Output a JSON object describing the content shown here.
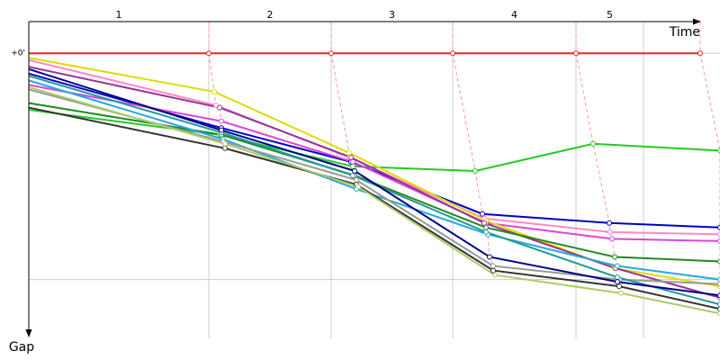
{
  "chart_data": {
    "type": "line",
    "x_label": "Time",
    "y_label": "Gap",
    "xlim": [
      0,
      768
    ],
    "ylim": [
      -0.14,
      1.26
    ],
    "yticks": [
      {
        "value": 0,
        "label": "+0'"
      },
      {
        "value": 1,
        "label": null
      }
    ],
    "laps": {
      "labels": [
        "1",
        "2",
        "3",
        "4",
        "5"
      ],
      "ends": [
        200,
        336,
        471,
        608,
        683
      ]
    },
    "grid": true,
    "series": [
      {
        "color": "#22cc22",
        "x": [
          0,
          212,
          360,
          496,
          627,
          768
        ],
        "y": [
          0.25,
          0.36,
          0.5,
          0.52,
          0.4,
          0.43
        ]
      },
      {
        "color": "#0000cc",
        "x": [
          0,
          214,
          358,
          504,
          645,
          768
        ],
        "y": [
          0.09,
          0.33,
          0.48,
          0.71,
          0.75,
          0.77
        ]
      },
      {
        "color": "#dd44dd",
        "x": [
          0,
          214,
          360,
          508,
          648,
          768
        ],
        "y": [
          0.14,
          0.3,
          0.48,
          0.75,
          0.82,
          0.83
        ]
      },
      {
        "color": "#ff88cc",
        "x": [
          0,
          208,
          356,
          506,
          646,
          768
        ],
        "y": [
          0.03,
          0.23,
          0.46,
          0.73,
          0.79,
          0.8
        ]
      },
      {
        "color": "#dddd00",
        "x": [
          0,
          206,
          356,
          508,
          651,
          768
        ],
        "y": [
          0.02,
          0.17,
          0.44,
          0.74,
          0.95,
          1.03
        ]
      },
      {
        "color": "#993399",
        "x": [
          0,
          212,
          358,
          506,
          652,
          768
        ],
        "y": [
          0.06,
          0.24,
          0.46,
          0.75,
          0.95,
          1.08
        ]
      },
      {
        "color": "#228822",
        "x": [
          0,
          214,
          362,
          508,
          651,
          768
        ],
        "y": [
          0.22,
          0.36,
          0.54,
          0.77,
          0.9,
          0.92
        ]
      },
      {
        "color": "#22aadd",
        "x": [
          0,
          216,
          364,
          510,
          654,
          768
        ],
        "y": [
          0.12,
          0.38,
          0.6,
          0.8,
          0.94,
          1.0
        ]
      },
      {
        "color": "#999999",
        "x": [
          0,
          216,
          364,
          516,
          656,
          768
        ],
        "y": [
          0.16,
          0.39,
          0.56,
          0.94,
          1.0,
          1.02
        ]
      },
      {
        "color": "#333333",
        "x": [
          0,
          218,
          364,
          516,
          656,
          768
        ],
        "y": [
          0.24,
          0.42,
          0.58,
          0.96,
          1.03,
          1.13
        ]
      },
      {
        "color": "#aacc66",
        "x": [
          0,
          218,
          366,
          518,
          658,
          768
        ],
        "y": [
          0.15,
          0.4,
          0.59,
          0.98,
          1.06,
          1.15
        ]
      },
      {
        "color": "#229999",
        "x": [
          0,
          214,
          360,
          508,
          654,
          768
        ],
        "y": [
          0.1,
          0.35,
          0.54,
          0.79,
          0.99,
          1.11
        ]
      },
      {
        "color": "#000088",
        "x": [
          0,
          214,
          362,
          512,
          654,
          768
        ],
        "y": [
          0.07,
          0.34,
          0.52,
          0.9,
          1.01,
          1.07
        ]
      },
      {
        "color": "#ee2222",
        "x": [
          0,
          200,
          336,
          471,
          608,
          746
        ],
        "y": [
          0,
          0,
          0,
          0,
          0,
          0
        ]
      }
    ]
  }
}
